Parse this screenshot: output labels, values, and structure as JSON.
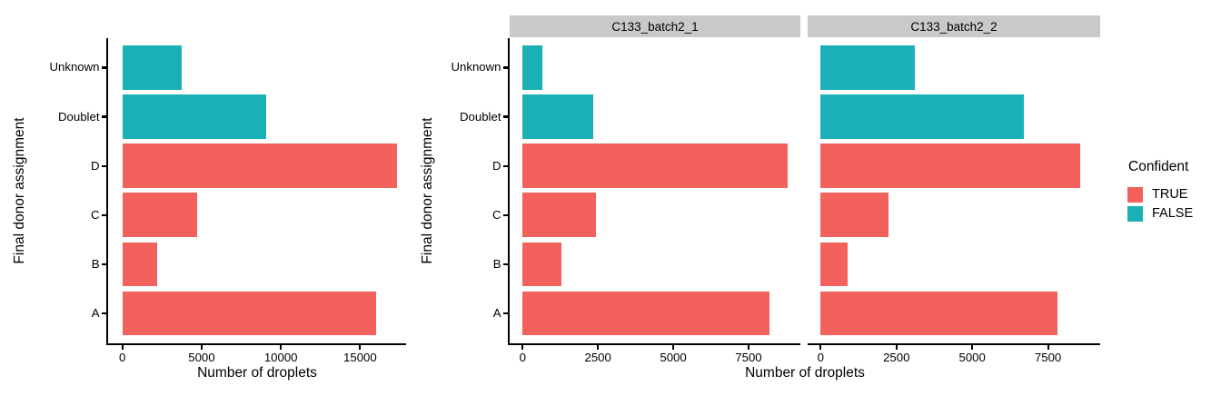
{
  "palette": {
    "confident_true": "#F3615D",
    "confident_false": "#19B1B5",
    "strip_background": "#C9C9C9",
    "axis_line": "#000000",
    "text": "#000000"
  },
  "legend": {
    "title": "Confident",
    "items": [
      {
        "label": "TRUE",
        "color": "#F3615D"
      },
      {
        "label": "FALSE",
        "color": "#19B1B5"
      }
    ]
  },
  "chart_data": [
    {
      "id": "combined",
      "type": "bar",
      "orientation": "horizontal",
      "title": "",
      "xlabel": "Number of droplets",
      "ylabel": "Final donor assignment",
      "categories_top_to_bottom": [
        "Unknown",
        "Doublet",
        "D",
        "C",
        "B",
        "A"
      ],
      "xticks": [
        0,
        5000,
        10000,
        15000
      ],
      "xlim": [
        0,
        17900
      ],
      "grid": false,
      "legend_title": "Confident",
      "bars": [
        {
          "category": "Unknown",
          "value": 3750,
          "confident": "FALSE"
        },
        {
          "category": "Doublet",
          "value": 9050,
          "confident": "FALSE"
        },
        {
          "category": "D",
          "value": 17350,
          "confident": "TRUE"
        },
        {
          "category": "C",
          "value": 4700,
          "confident": "TRUE"
        },
        {
          "category": "B",
          "value": 2200,
          "confident": "TRUE"
        },
        {
          "category": "A",
          "value": 16000,
          "confident": "TRUE"
        }
      ]
    },
    {
      "id": "faceted",
      "type": "bar",
      "orientation": "horizontal",
      "title": "",
      "xlabel": "Number of droplets",
      "ylabel": "Final donor assignment",
      "categories_top_to_bottom": [
        "Unknown",
        "Doublet",
        "D",
        "C",
        "B",
        "A"
      ],
      "xticks": [
        0,
        2500,
        5000,
        7500
      ],
      "xlim": [
        0,
        9220
      ],
      "grid": false,
      "legend_title": "Confident",
      "facets": [
        {
          "strip_label": "C133_batch2_1",
          "bars": [
            {
              "category": "Unknown",
              "value": 650,
              "confident": "FALSE"
            },
            {
              "category": "Doublet",
              "value": 2350,
              "confident": "FALSE"
            },
            {
              "category": "D",
              "value": 8800,
              "confident": "TRUE"
            },
            {
              "category": "C",
              "value": 2450,
              "confident": "TRUE"
            },
            {
              "category": "B",
              "value": 1300,
              "confident": "TRUE"
            },
            {
              "category": "A",
              "value": 8200,
              "confident": "TRUE"
            }
          ]
        },
        {
          "strip_label": "C133_batch2_2",
          "bars": [
            {
              "category": "Unknown",
              "value": 3100,
              "confident": "FALSE"
            },
            {
              "category": "Doublet",
              "value": 6700,
              "confident": "FALSE"
            },
            {
              "category": "D",
              "value": 8550,
              "confident": "TRUE"
            },
            {
              "category": "C",
              "value": 2250,
              "confident": "TRUE"
            },
            {
              "category": "B",
              "value": 900,
              "confident": "TRUE"
            },
            {
              "category": "A",
              "value": 7800,
              "confident": "TRUE"
            }
          ]
        }
      ]
    }
  ]
}
